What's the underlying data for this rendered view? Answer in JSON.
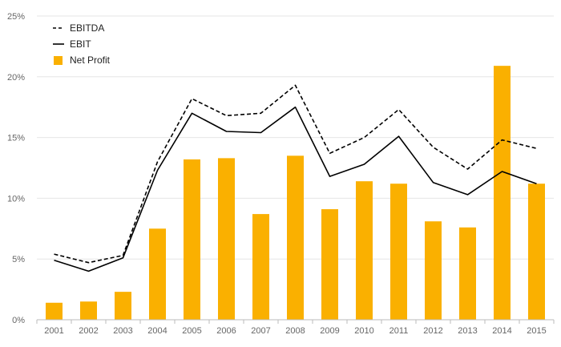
{
  "chart_data": {
    "type": "bar",
    "categories": [
      "2001",
      "2002",
      "2003",
      "2004",
      "2005",
      "2006",
      "2007",
      "2008",
      "2009",
      "2010",
      "2011",
      "2012",
      "2013",
      "2014",
      "2015"
    ],
    "ylim": [
      0,
      25
    ],
    "yticks": [
      0,
      5,
      10,
      15,
      20,
      25
    ],
    "ytick_labels": [
      "0%",
      "5%",
      "10%",
      "15%",
      "20%",
      "25%"
    ],
    "grid": true,
    "legend_position": "top-left",
    "series": [
      {
        "name": "EBITDA",
        "kind": "line",
        "style": "dashed",
        "color": "#000000",
        "values": [
          5.4,
          4.7,
          5.3,
          13.0,
          18.2,
          16.8,
          17.0,
          19.3,
          13.7,
          15.0,
          17.3,
          14.2,
          12.4,
          14.8,
          14.1
        ]
      },
      {
        "name": "EBIT",
        "kind": "line",
        "style": "solid",
        "color": "#000000",
        "values": [
          4.9,
          4.0,
          5.1,
          12.3,
          17.0,
          15.5,
          15.4,
          17.5,
          11.8,
          12.8,
          15.1,
          11.3,
          10.3,
          12.2,
          11.2
        ]
      },
      {
        "name": "Net Profit",
        "kind": "bar",
        "color": "#FAB000",
        "values": [
          1.4,
          1.5,
          2.3,
          7.5,
          13.2,
          13.3,
          8.7,
          13.5,
          9.1,
          11.4,
          11.2,
          8.1,
          7.6,
          20.9,
          11.2
        ]
      }
    ]
  }
}
